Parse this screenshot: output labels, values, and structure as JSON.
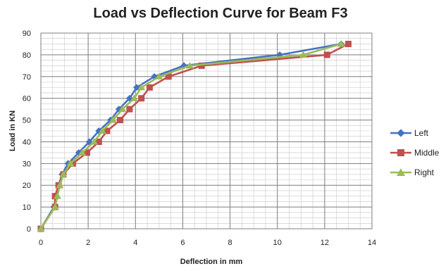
{
  "chart_data": {
    "type": "line",
    "title": "Load vs Deflection Curve for Beam F3",
    "xlabel": "Deflection in mm",
    "ylabel": "Load in KN",
    "xlim": [
      0,
      14
    ],
    "ylim": [
      0,
      90
    ],
    "x_ticks": [
      0,
      2,
      4,
      6,
      8,
      10,
      12,
      14
    ],
    "y_ticks": [
      0,
      10,
      20,
      30,
      40,
      50,
      60,
      70,
      80,
      90
    ],
    "grid": true,
    "legend_position": "right",
    "series": [
      {
        "name": "Left",
        "color": "#4472c4",
        "marker": "diamond",
        "points": [
          {
            "x": 0,
            "y": 0
          },
          {
            "x": 0.55,
            "y": 10
          },
          {
            "x": 0.65,
            "y": 15
          },
          {
            "x": 0.75,
            "y": 20
          },
          {
            "x": 0.9,
            "y": 25
          },
          {
            "x": 1.15,
            "y": 30
          },
          {
            "x": 1.6,
            "y": 35
          },
          {
            "x": 2.05,
            "y": 40
          },
          {
            "x": 2.45,
            "y": 45
          },
          {
            "x": 2.95,
            "y": 50
          },
          {
            "x": 3.3,
            "y": 55
          },
          {
            "x": 3.75,
            "y": 60
          },
          {
            "x": 4.05,
            "y": 65
          },
          {
            "x": 4.8,
            "y": 70
          },
          {
            "x": 6.05,
            "y": 75
          },
          {
            "x": 10.1,
            "y": 80
          },
          {
            "x": 12.7,
            "y": 85
          }
        ]
      },
      {
        "name": "Middle",
        "color": "#c0504d",
        "marker": "square",
        "points": [
          {
            "x": 0,
            "y": 0
          },
          {
            "x": 0.6,
            "y": 10
          },
          {
            "x": 0.6,
            "y": 15
          },
          {
            "x": 0.75,
            "y": 20
          },
          {
            "x": 0.95,
            "y": 25
          },
          {
            "x": 1.35,
            "y": 30
          },
          {
            "x": 1.95,
            "y": 35
          },
          {
            "x": 2.45,
            "y": 40
          },
          {
            "x": 2.8,
            "y": 45
          },
          {
            "x": 3.35,
            "y": 50
          },
          {
            "x": 3.75,
            "y": 55
          },
          {
            "x": 4.25,
            "y": 60
          },
          {
            "x": 4.6,
            "y": 65
          },
          {
            "x": 5.4,
            "y": 70
          },
          {
            "x": 6.8,
            "y": 75
          },
          {
            "x": 12.1,
            "y": 80
          },
          {
            "x": 13,
            "y": 85
          }
        ]
      },
      {
        "name": "Right",
        "color": "#9bbb59",
        "marker": "triangle",
        "points": [
          {
            "x": 0,
            "y": 0
          },
          {
            "x": 0.6,
            "y": 10
          },
          {
            "x": 0.7,
            "y": 15
          },
          {
            "x": 0.8,
            "y": 20
          },
          {
            "x": 0.95,
            "y": 25
          },
          {
            "x": 1.25,
            "y": 30
          },
          {
            "x": 1.75,
            "y": 35
          },
          {
            "x": 2.25,
            "y": 40
          },
          {
            "x": 2.6,
            "y": 45
          },
          {
            "x": 3.05,
            "y": 50
          },
          {
            "x": 3.45,
            "y": 55
          },
          {
            "x": 3.95,
            "y": 60
          },
          {
            "x": 4.25,
            "y": 65
          },
          {
            "x": 5,
            "y": 70
          },
          {
            "x": 6.3,
            "y": 75
          },
          {
            "x": 11.1,
            "y": 80
          },
          {
            "x": 12.7,
            "y": 85
          }
        ]
      }
    ]
  }
}
